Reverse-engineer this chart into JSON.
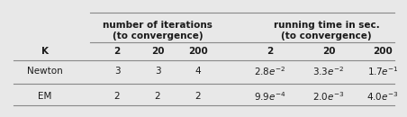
{
  "col_headers_iter": [
    "2",
    "20",
    "200"
  ],
  "col_headers_time": [
    "2",
    "20",
    "200"
  ],
  "row_labels": [
    "Newton",
    "EM"
  ],
  "iter_data": [
    [
      "3",
      "3",
      "4"
    ],
    [
      "2",
      "2",
      "2"
    ]
  ],
  "group_header_iter": "number of iterations\n(to convergence)",
  "group_header_time": "running time in sec.\n(to convergence)",
  "k_label": "K",
  "bg_color": "#e8e8e8",
  "text_color": "#1a1a1a",
  "line_color": "#888888",
  "time_display": [
    [
      "$2.8e^{-2}$",
      "$3.3e^{-2}$",
      "$1.7e^{-1}$"
    ],
    [
      "$9.9e^{-4}$",
      "$2.0e^{-3}$",
      "$4.0e^{-3}$"
    ]
  ],
  "fs_group": 7.5,
  "fs_col": 7.5,
  "fs_cell": 7.5,
  "fs_row": 7.5
}
